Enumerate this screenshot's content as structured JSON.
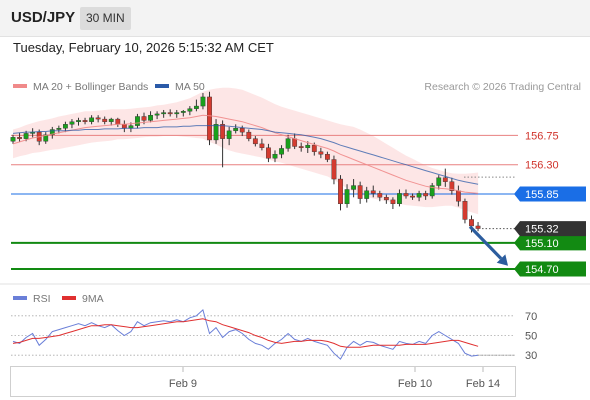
{
  "header": {
    "symbol": "USD/JPY",
    "timeframe": "30 MIN",
    "timestamp": "Tuesday, February 10, 2026 5:15:32 AM CET"
  },
  "legend": {
    "ma20_label": "MA 20 + Bollinger Bands",
    "ma50_label": "MA 50",
    "copyright": "Research © 2026 Trading Central",
    "colors": {
      "ma20": "#f08a8a",
      "ma50": "#2a5aa8"
    }
  },
  "chart_data": [
    {
      "type": "candlestick",
      "title": "",
      "y_range": [
        154.5,
        157.6
      ],
      "levels": [
        {
          "value": "156.75",
          "color": "#e88080",
          "kind": "resistance"
        },
        {
          "value": "156.30",
          "color": "#e88080",
          "kind": "resistance"
        },
        {
          "value": "155.85",
          "color": "#1a6ee6",
          "kind": "pivot"
        },
        {
          "value": "155.10",
          "color": "#128a12",
          "kind": "support"
        },
        {
          "value": "154.70",
          "color": "#128a12",
          "kind": "support"
        }
      ],
      "last_price": "155.32",
      "x_ticks": [
        "Feb 9",
        "Feb 10",
        "Feb 14"
      ],
      "projection": {
        "from": 155.35,
        "to": 154.75
      },
      "series": [
        {
          "name": "MA 20 + Bollinger Bands"
        },
        {
          "name": "MA 50"
        }
      ],
      "candles": [
        [
          156.66,
          156.76,
          156.62,
          156.72
        ],
        [
          156.72,
          156.79,
          156.65,
          156.7
        ],
        [
          156.7,
          156.82,
          156.66,
          156.78
        ],
        [
          156.78,
          156.86,
          156.72,
          156.8
        ],
        [
          156.8,
          156.84,
          156.6,
          156.66
        ],
        [
          156.66,
          156.8,
          156.62,
          156.76
        ],
        [
          156.76,
          156.88,
          156.7,
          156.84
        ],
        [
          156.84,
          156.9,
          156.78,
          156.86
        ],
        [
          156.86,
          156.96,
          156.8,
          156.92
        ],
        [
          156.92,
          157.0,
          156.86,
          156.96
        ],
        [
          156.96,
          157.02,
          156.9,
          156.98
        ],
        [
          156.98,
          157.02,
          156.92,
          156.96
        ],
        [
          156.96,
          157.06,
          156.92,
          157.02
        ],
        [
          157.02,
          157.06,
          156.95,
          157.0
        ],
        [
          157.0,
          157.04,
          156.92,
          156.96
        ],
        [
          156.96,
          157.02,
          156.9,
          157.0
        ],
        [
          157.0,
          157.02,
          156.88,
          156.92
        ],
        [
          156.92,
          156.98,
          156.8,
          156.86
        ],
        [
          156.86,
          156.95,
          156.8,
          156.9
        ],
        [
          156.9,
          157.08,
          156.86,
          157.04
        ],
        [
          157.04,
          157.1,
          156.92,
          156.98
        ],
        [
          156.98,
          157.12,
          156.95,
          157.06
        ],
        [
          157.06,
          157.12,
          157.0,
          157.08
        ],
        [
          157.08,
          157.14,
          157.02,
          157.1
        ],
        [
          157.1,
          157.15,
          157.04,
          157.08
        ],
        [
          157.08,
          157.14,
          157.02,
          157.1
        ],
        [
          157.1,
          157.14,
          157.04,
          157.12
        ],
        [
          157.12,
          157.2,
          157.06,
          157.16
        ],
        [
          157.16,
          157.3,
          157.12,
          157.2
        ],
        [
          157.2,
          157.4,
          157.15,
          157.34
        ],
        [
          157.34,
          157.42,
          156.6,
          156.68
        ],
        [
          156.68,
          157.0,
          156.62,
          156.92
        ],
        [
          156.92,
          156.98,
          156.26,
          156.7
        ],
        [
          156.7,
          156.88,
          156.6,
          156.82
        ],
        [
          156.82,
          156.92,
          156.78,
          156.86
        ],
        [
          156.86,
          156.9,
          156.74,
          156.8
        ],
        [
          156.8,
          156.84,
          156.66,
          156.7
        ],
        [
          156.7,
          156.74,
          156.58,
          156.62
        ],
        [
          156.62,
          156.7,
          156.52,
          156.56
        ],
        [
          156.56,
          156.62,
          156.34,
          156.4
        ],
        [
          156.4,
          156.52,
          156.34,
          156.46
        ],
        [
          156.46,
          156.6,
          156.4,
          156.55
        ],
        [
          156.55,
          156.76,
          156.5,
          156.7
        ],
        [
          156.7,
          156.78,
          156.54,
          156.58
        ],
        [
          156.58,
          156.64,
          156.5,
          156.56
        ],
        [
          156.56,
          156.66,
          156.48,
          156.6
        ],
        [
          156.6,
          156.64,
          156.44,
          156.5
        ],
        [
          156.5,
          156.56,
          156.4,
          156.46
        ],
        [
          156.46,
          156.5,
          156.34,
          156.38
        ],
        [
          156.38,
          156.44,
          156.0,
          156.08
        ],
        [
          156.08,
          156.14,
          155.6,
          155.7
        ],
        [
          155.7,
          156.0,
          155.64,
          155.92
        ],
        [
          155.92,
          156.08,
          155.8,
          155.98
        ],
        [
          155.98,
          156.04,
          155.7,
          155.78
        ],
        [
          155.78,
          155.96,
          155.72,
          155.9
        ],
        [
          155.9,
          155.98,
          155.8,
          155.86
        ],
        [
          155.86,
          155.9,
          155.74,
          155.8
        ],
        [
          155.8,
          155.84,
          155.7,
          155.76
        ],
        [
          155.76,
          155.8,
          155.62,
          155.7
        ],
        [
          155.7,
          155.92,
          155.66,
          155.86
        ],
        [
          155.86,
          155.92,
          155.78,
          155.82
        ],
        [
          155.82,
          155.86,
          155.76,
          155.8
        ],
        [
          155.8,
          155.9,
          155.74,
          155.86
        ],
        [
          155.86,
          155.9,
          155.76,
          155.82
        ],
        [
          155.82,
          156.02,
          155.78,
          155.98
        ],
        [
          155.98,
          156.14,
          155.92,
          156.1
        ],
        [
          156.1,
          156.24,
          155.96,
          156.04
        ],
        [
          156.04,
          156.1,
          155.84,
          155.9
        ],
        [
          155.9,
          155.98,
          155.66,
          155.74
        ],
        [
          155.74,
          155.78,
          155.4,
          155.46
        ],
        [
          155.46,
          155.52,
          155.26,
          155.36
        ],
        [
          155.36,
          155.42,
          155.28,
          155.32
        ]
      ],
      "ma20": [
        156.62,
        156.65,
        156.68,
        156.71,
        156.73,
        156.75,
        156.77,
        156.79,
        156.81,
        156.83,
        156.85,
        156.87,
        156.88,
        156.89,
        156.9,
        156.91,
        156.92,
        156.92,
        156.93,
        156.94,
        156.95,
        156.96,
        156.97,
        156.98,
        156.99,
        157.0,
        157.01,
        157.02,
        157.04,
        157.06,
        157.05,
        157.04,
        157.02,
        157.0,
        156.98,
        156.96,
        156.93,
        156.9,
        156.87,
        156.83,
        156.79,
        156.76,
        156.73,
        156.7,
        156.67,
        156.64,
        156.61,
        156.58,
        156.55,
        156.51,
        156.46,
        156.42,
        156.38,
        156.34,
        156.3,
        156.26,
        156.22,
        156.18,
        156.14,
        156.1,
        156.06,
        156.03,
        156.0,
        155.97,
        155.95,
        155.94,
        155.93,
        155.92,
        155.9,
        155.88,
        155.87,
        155.86
      ],
      "band_width": [
        0.22,
        0.22,
        0.23,
        0.23,
        0.24,
        0.24,
        0.24,
        0.25,
        0.25,
        0.25,
        0.25,
        0.25,
        0.24,
        0.24,
        0.24,
        0.24,
        0.23,
        0.23,
        0.23,
        0.23,
        0.23,
        0.23,
        0.24,
        0.24,
        0.25,
        0.26,
        0.28,
        0.3,
        0.33,
        0.36,
        0.4,
        0.43,
        0.46,
        0.48,
        0.49,
        0.49,
        0.48,
        0.47,
        0.46,
        0.45,
        0.44,
        0.43,
        0.43,
        0.43,
        0.43,
        0.43,
        0.43,
        0.43,
        0.43,
        0.44,
        0.46,
        0.48,
        0.5,
        0.5,
        0.49,
        0.48,
        0.46,
        0.44,
        0.42,
        0.4,
        0.38,
        0.36,
        0.34,
        0.32,
        0.3,
        0.28,
        0.26,
        0.25,
        0.26,
        0.28,
        0.3,
        0.32
      ],
      "ma50": [
        156.78,
        156.79,
        156.8,
        156.8,
        156.81,
        156.81,
        156.82,
        156.82,
        156.82,
        156.83,
        156.83,
        156.84,
        156.84,
        156.84,
        156.85,
        156.85,
        156.85,
        156.86,
        156.86,
        156.86,
        156.87,
        156.87,
        156.87,
        156.88,
        156.88,
        156.88,
        156.89,
        156.89,
        156.9,
        156.9,
        156.9,
        156.9,
        156.9,
        156.89,
        156.88,
        156.87,
        156.86,
        156.85,
        156.84,
        156.82,
        156.8,
        156.79,
        156.78,
        156.77,
        156.76,
        156.74,
        156.72,
        156.7,
        156.67,
        156.64,
        156.6,
        156.57,
        156.54,
        156.51,
        156.48,
        156.45,
        156.42,
        156.39,
        156.36,
        156.33,
        156.3,
        156.27,
        156.24,
        156.21,
        156.18,
        156.15,
        156.12,
        156.09,
        156.06,
        156.04,
        156.02,
        156.0
      ]
    },
    {
      "type": "line",
      "title": "",
      "y_range": [
        20,
        80
      ],
      "y_ticks": [
        "70",
        "50",
        "30"
      ],
      "legend": [
        {
          "name": "RSI",
          "color": "#6a7fd8"
        },
        {
          "name": "9MA",
          "color": "#e03030"
        }
      ],
      "rsi": [
        44,
        42,
        48,
        52,
        40,
        46,
        54,
        56,
        58,
        60,
        62,
        60,
        63,
        60,
        58,
        61,
        55,
        50,
        54,
        64,
        60,
        63,
        64,
        65,
        64,
        66,
        64,
        68,
        70,
        76,
        52,
        58,
        48,
        54,
        56,
        52,
        46,
        42,
        40,
        36,
        42,
        46,
        52,
        46,
        44,
        47,
        44,
        42,
        40,
        32,
        26,
        38,
        44,
        40,
        44,
        43,
        40,
        38,
        36,
        44,
        42,
        41,
        44,
        42,
        50,
        54,
        50,
        46,
        42,
        32,
        29,
        30
      ],
      "ma9": [
        42,
        43,
        45,
        47,
        47,
        48,
        49,
        50,
        52,
        54,
        56,
        58,
        60,
        60,
        61,
        61,
        60,
        59,
        58,
        58,
        59,
        60,
        61,
        62,
        63,
        64,
        64,
        65,
        66,
        67,
        65,
        64,
        61,
        59,
        57,
        55,
        53,
        50,
        48,
        45,
        43,
        42,
        43,
        44,
        44,
        45,
        45,
        45,
        44,
        42,
        39,
        38,
        38,
        38,
        39,
        40,
        40,
        40,
        40,
        40,
        41,
        41,
        41,
        41,
        42,
        43,
        44,
        45,
        45,
        43,
        41,
        39
      ]
    }
  ]
}
